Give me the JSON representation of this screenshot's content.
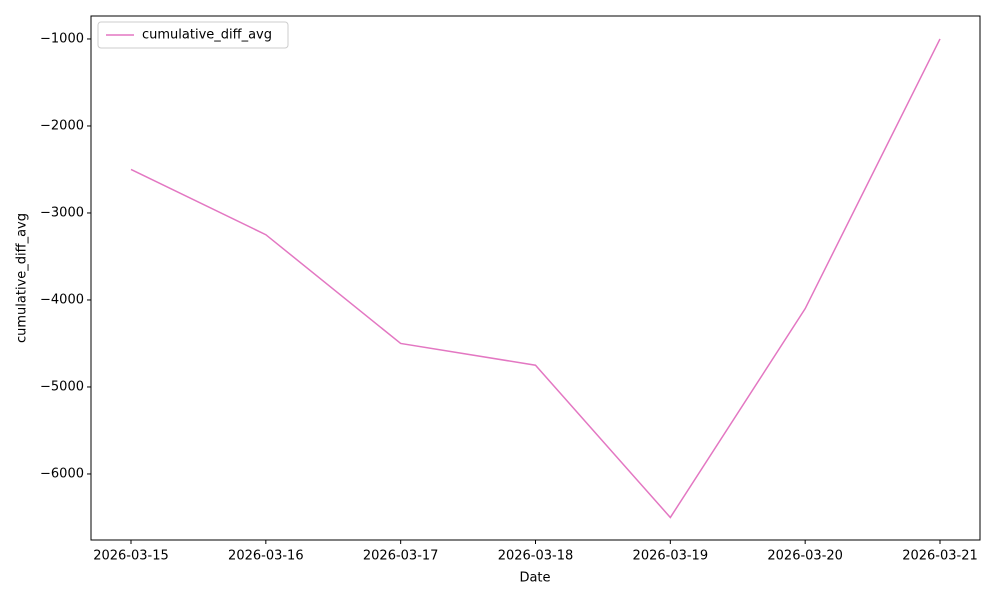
{
  "chart_data": {
    "type": "line",
    "x": [
      "2026-03-15",
      "2026-03-16",
      "2026-03-17",
      "2026-03-18",
      "2026-03-19",
      "2026-03-20",
      "2026-03-21"
    ],
    "series": [
      {
        "name": "cumulative_diff_avg",
        "color": "#e377c2",
        "values": [
          -2500,
          -3250,
          -4500,
          -4750,
          -6500,
          -4100,
          -1000
        ]
      }
    ],
    "xlabel": "Date",
    "ylabel": "cumulative_diff_avg",
    "ylim": [
      -6759,
      -736
    ],
    "yticks": [
      {
        "value": -6000,
        "label": "−6000"
      },
      {
        "value": -5000,
        "label": "−5000"
      },
      {
        "value": -4000,
        "label": "−4000"
      },
      {
        "value": -3000,
        "label": "−3000"
      },
      {
        "value": -2000,
        "label": "−2000"
      },
      {
        "value": -1000,
        "label": "−1000"
      }
    ],
    "legend": "upper left",
    "grid": false
  }
}
